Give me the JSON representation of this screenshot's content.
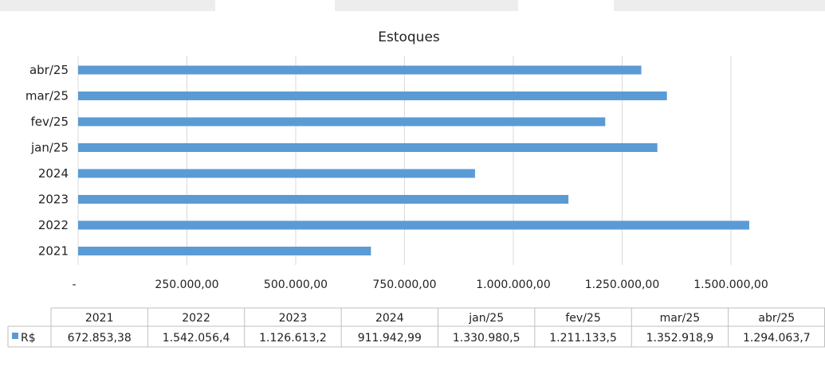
{
  "chart_data": {
    "type": "bar",
    "orientation": "horizontal",
    "title": "Estoques",
    "categories": [
      "2021",
      "2022",
      "2023",
      "2024",
      "jan/25",
      "fev/25",
      "mar/25",
      "abr/25"
    ],
    "series": [
      {
        "name": "R$",
        "color": "#5b9bd5",
        "values": [
          672853.38,
          1542056.4,
          1126613.2,
          911942.99,
          1330980.5,
          1211133.5,
          1352918.9,
          1294063.7
        ]
      }
    ],
    "value_axis": {
      "min": 0,
      "max": 1500000,
      "ticks": [
        0,
        250000,
        500000,
        750000,
        1000000,
        1250000,
        1500000
      ],
      "tick_labels": [
        "-",
        "250.000,00",
        "500.000,00",
        "750.000,00",
        "1.000.000,00",
        "1.250.000,00",
        "1.500.000,00"
      ]
    },
    "gridlines": true,
    "data_table": {
      "headers": [
        "2021",
        "2022",
        "2023",
        "2024",
        "jan/25",
        "fev/25",
        "mar/25",
        "abr/25"
      ],
      "rows": [
        {
          "legend": "R$",
          "values": [
            "672.853,38",
            "1.542.056,4",
            "1.126.613,2",
            "911.942,99",
            "1.330.980,5",
            "1.211.133,5",
            "1.352.918,9",
            "1.294.063,7"
          ]
        }
      ]
    },
    "colors": {
      "bar": "#5b9bd5",
      "grid": "#d9d9d9",
      "table_border": "#bfbfbf"
    }
  }
}
